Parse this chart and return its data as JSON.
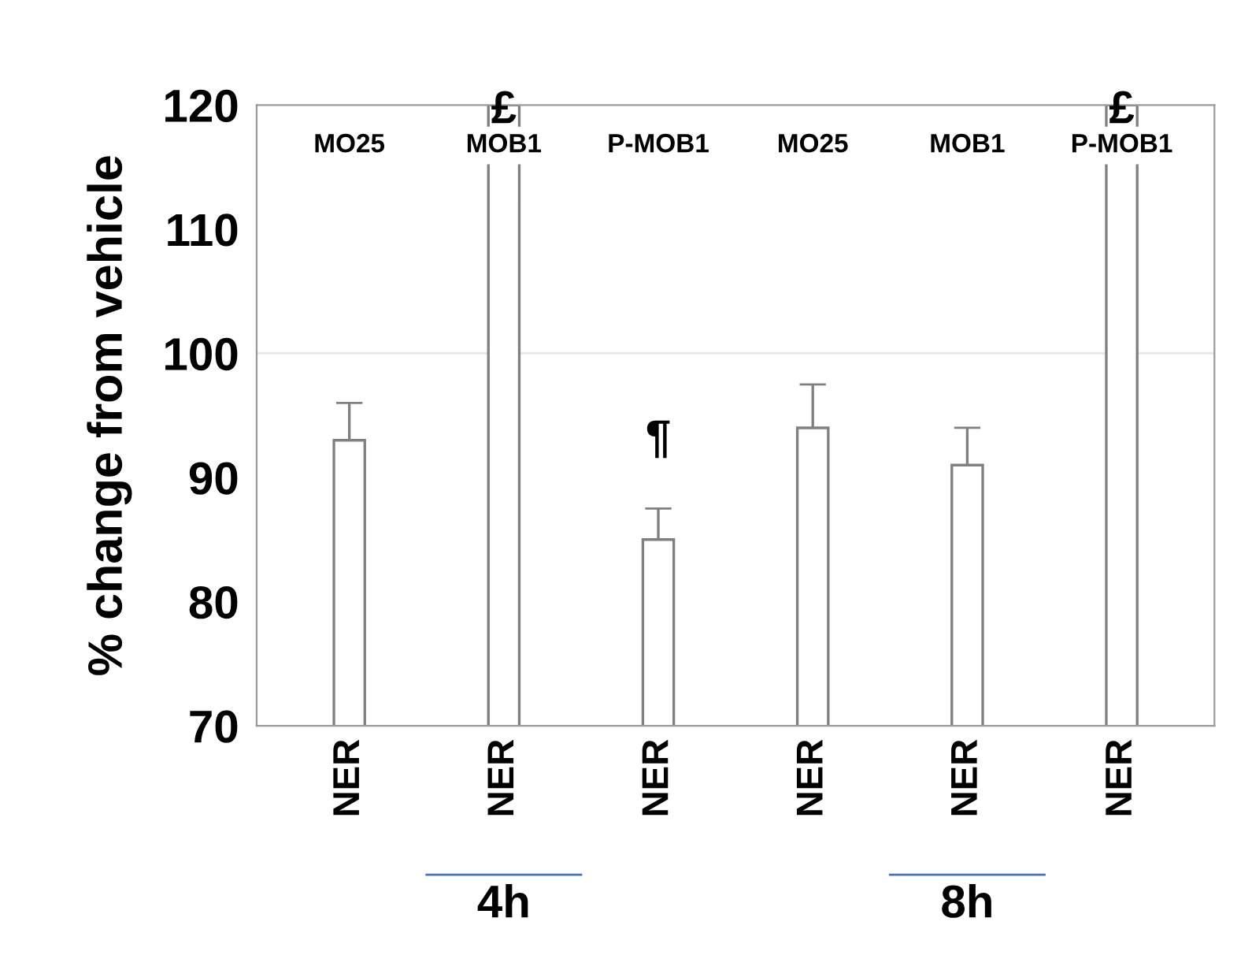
{
  "chart_data": {
    "type": "bar",
    "ylabel": "% change from vehicle",
    "categories": [
      "NER",
      "NER",
      "NER",
      "NER",
      "NER",
      "NER"
    ],
    "values": [
      93,
      120,
      85,
      94,
      91,
      120
    ],
    "errors": [
      3,
      null,
      2.5,
      3.5,
      3,
      null
    ],
    "color": "#ffffff",
    "ylim": [
      70,
      120
    ],
    "yticks": [
      70,
      80,
      90,
      100,
      110,
      120
    ],
    "ref_lines": [
      {
        "axis": "y",
        "value": 100,
        "color": "#e6e6e6"
      }
    ],
    "annotations": [
      "MO25",
      "MOB1",
      "P-MOB1",
      "MO25",
      "MOB1",
      "P-MOB1",
      "£",
      "¶",
      "£",
      "4h",
      "8h"
    ],
    "grid": false
  }
}
